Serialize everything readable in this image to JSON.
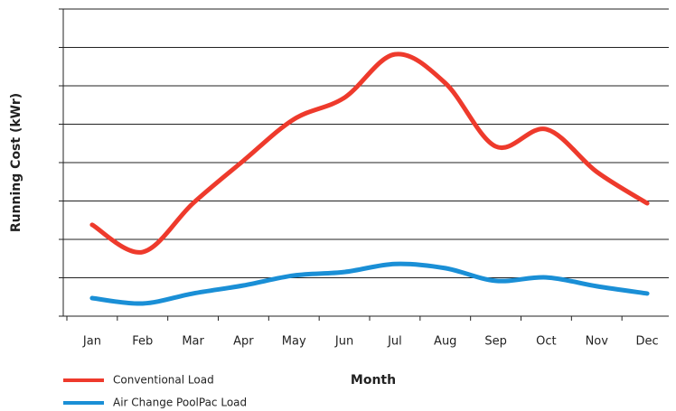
{
  "chart_data": {
    "type": "line",
    "y_label": "Running Cost (kWr)",
    "x_label": "Month",
    "categories": [
      "Jan",
      "Feb",
      "Mar",
      "Apr",
      "May",
      "Jun",
      "Jul",
      "Aug",
      "Sep",
      "Oct",
      "Nov",
      "Dec"
    ],
    "series": [
      {
        "name": "Conventional Load",
        "color": "#ee3a2c",
        "values": [
          2.38,
          1.67,
          2.94,
          4.05,
          5.13,
          5.69,
          6.82,
          6.07,
          4.42,
          4.87,
          3.76,
          2.94
        ]
      },
      {
        "name": "Air Change PoolPac Load",
        "color": "#1a8fd6",
        "values": [
          0.47,
          0.33,
          0.59,
          0.8,
          1.06,
          1.15,
          1.36,
          1.25,
          0.92,
          1.01,
          0.78,
          0.59
        ]
      }
    ],
    "ylim": [
      0,
      8
    ],
    "yticks": [
      0,
      1,
      2,
      3,
      4,
      5,
      6,
      7,
      8
    ],
    "grid": true
  }
}
